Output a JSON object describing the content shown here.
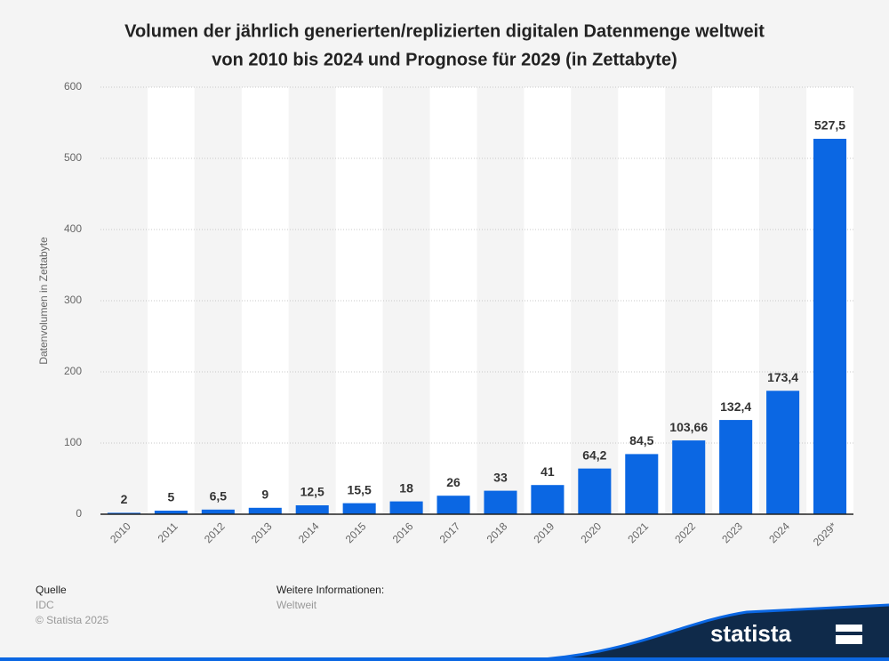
{
  "chart_data": {
    "type": "bar",
    "title": [
      "Volumen der jährlich generierten/replizierten digitalen Datenmenge weltweit",
      "von 2010 bis 2024 und Prognose für 2029 (in Zettabyte)"
    ],
    "y_label": "Datenvolumen in Zettabyte",
    "categories": [
      "2010",
      "2011",
      "2012",
      "2013",
      "2014",
      "2015",
      "2016",
      "2017",
      "2018",
      "2019",
      "2020",
      "2021",
      "2022",
      "2023",
      "2024",
      "2029*"
    ],
    "values": [
      2,
      5,
      6.5,
      9,
      12.5,
      15.5,
      18,
      26,
      33,
      41,
      64.2,
      84.5,
      103.66,
      132.4,
      173.4,
      527.5
    ],
    "value_labels": [
      "2",
      "5",
      "6,5",
      "9",
      "12,5",
      "15,5",
      "18",
      "26",
      "33",
      "41",
      "64,2",
      "84,5",
      "103,66",
      "132,4",
      "173,4",
      "527,5"
    ],
    "color": "#0b67e3",
    "ylim": [
      0,
      600
    ],
    "yticks": [
      0,
      100,
      200,
      300,
      400,
      500,
      600
    ],
    "grid": true
  },
  "footer": {
    "source_title": "Quelle",
    "source": "IDC",
    "copyright": "© Statista 2025",
    "info_title": "Weitere Informationen:",
    "info": "Weltweit",
    "logo": "statista"
  }
}
